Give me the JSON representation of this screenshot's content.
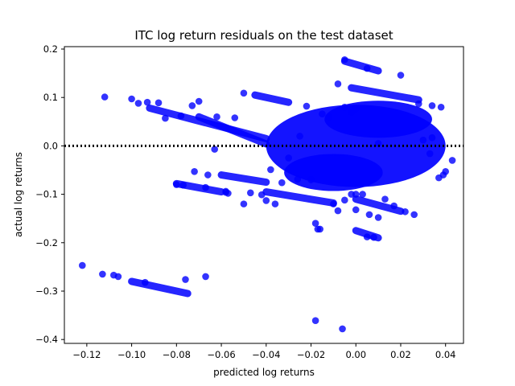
{
  "chart_data": {
    "type": "scatter",
    "title": "ITC log return residuals on the test dataset",
    "xlabel": "predicted log returns",
    "ylabel": "actual log returns",
    "xlim": [
      -0.13,
      0.048
    ],
    "ylim": [
      -0.408,
      0.205
    ],
    "xticks": [
      -0.12,
      -0.1,
      -0.08,
      -0.06,
      -0.04,
      -0.02,
      0.0,
      0.02,
      0.04
    ],
    "yticks": [
      -0.4,
      -0.3,
      -0.2,
      -0.1,
      0.0,
      0.1,
      0.2
    ],
    "xtick_labels": [
      "−0.12",
      "−0.10",
      "−0.08",
      "−0.06",
      "−0.04",
      "−0.02",
      "0.00",
      "0.02",
      "0.04"
    ],
    "ytick_labels": [
      "−0.4",
      "−0.3",
      "−0.2",
      "−0.1",
      "0.0",
      "0.1",
      "0.2"
    ],
    "reference_line": {
      "y": 0.0,
      "style": "dotted",
      "color": "#000000"
    },
    "marker_color": "#0000ff",
    "grid": false,
    "points": [
      [
        -0.122,
        -0.247
      ],
      [
        -0.113,
        -0.265
      ],
      [
        -0.108,
        -0.267
      ],
      [
        -0.106,
        -0.27
      ],
      [
        -0.112,
        0.101
      ],
      [
        -0.1,
        0.097
      ],
      [
        -0.097,
        0.088
      ],
      [
        -0.093,
        0.09
      ],
      [
        -0.088,
        0.089
      ],
      [
        -0.085,
        0.057
      ],
      [
        -0.078,
        0.062
      ],
      [
        -0.073,
        0.083
      ],
      [
        -0.07,
        0.092
      ],
      [
        -0.062,
        0.06
      ],
      [
        -0.054,
        0.058
      ],
      [
        -0.063,
        -0.007
      ],
      [
        -0.05,
        0.109
      ],
      [
        -0.038,
        -0.049
      ],
      [
        -0.018,
        -0.361
      ],
      [
        -0.006,
        -0.378
      ],
      [
        -0.005,
        0.178
      ],
      [
        -0.018,
        -0.16
      ],
      [
        0.013,
        -0.11
      ],
      [
        0.022,
        -0.136
      ],
      [
        0.026,
        -0.142
      ],
      [
        -0.008,
        -0.134
      ],
      [
        -0.01,
        -0.12
      ],
      [
        -0.005,
        -0.112
      ],
      [
        -0.002,
        -0.1
      ],
      [
        0.003,
        -0.1
      ],
      [
        0.017,
        -0.124
      ],
      [
        0.02,
        0.146
      ],
      [
        0.005,
        0.16
      ],
      [
        -0.008,
        0.128
      ],
      [
        -0.005,
        0.08
      ],
      [
        0.028,
        0.087
      ],
      [
        0.034,
        0.083
      ],
      [
        0.038,
        0.08
      ],
      [
        0.043,
        -0.03
      ],
      [
        0.04,
        -0.053
      ],
      [
        0.039,
        -0.06
      ],
      [
        0.037,
        -0.066
      ],
      [
        0.034,
        0.017
      ],
      [
        0.033,
        -0.016
      ],
      [
        0.03,
        0.012
      ],
      [
        0.01,
        0.005
      ],
      [
        -0.025,
        0.02
      ],
      [
        -0.03,
        -0.025
      ],
      [
        -0.022,
        0.082
      ],
      [
        -0.012,
        0.06
      ],
      [
        -0.015,
        0.066
      ],
      [
        -0.002,
        0.07
      ],
      [
        0.0,
        0.077
      ],
      [
        -0.047,
        -0.097
      ],
      [
        -0.072,
        -0.053
      ],
      [
        -0.066,
        -0.06
      ],
      [
        -0.033,
        -0.076
      ],
      [
        -0.026,
        -0.069
      ],
      [
        -0.02,
        -0.07
      ],
      [
        -0.067,
        -0.27
      ],
      [
        -0.076,
        -0.276
      ],
      [
        -0.094,
        -0.282
      ],
      [
        -0.08,
        -0.08
      ],
      [
        -0.077,
        -0.081
      ],
      [
        -0.067,
        -0.086
      ],
      [
        -0.058,
        -0.094
      ],
      [
        -0.058,
        -0.096
      ],
      [
        -0.057,
        -0.098
      ],
      [
        -0.042,
        -0.101
      ],
      [
        -0.04,
        -0.113
      ],
      [
        -0.036,
        -0.12
      ],
      [
        -0.05,
        -0.12
      ],
      [
        0.0,
        -0.132
      ],
      [
        0.006,
        -0.142
      ],
      [
        0.01,
        -0.148
      ],
      [
        -0.016,
        -0.172
      ],
      [
        -0.017,
        -0.172
      ],
      [
        0.005,
        -0.188
      ],
      [
        0.008,
        -0.189
      ],
      [
        0.0,
        -0.1
      ]
    ],
    "dense_clusters": [
      {
        "from": [
          -0.092,
          0.078
        ],
        "to": [
          -0.04,
          0.015
        ],
        "note": "descending streak"
      },
      {
        "from": [
          -0.07,
          0.06
        ],
        "to": [
          -0.04,
          0.004
        ]
      },
      {
        "from": [
          -0.045,
          0.105
        ],
        "to": [
          -0.03,
          0.09
        ]
      },
      {
        "from": [
          -0.06,
          -0.06
        ],
        "to": [
          -0.04,
          -0.075
        ]
      },
      {
        "from": [
          -0.08,
          -0.078
        ],
        "to": [
          -0.06,
          -0.095
        ]
      },
      {
        "from": [
          -0.04,
          -0.095
        ],
        "to": [
          -0.01,
          -0.118
        ]
      },
      {
        "from": [
          -0.1,
          -0.28
        ],
        "to": [
          -0.075,
          -0.305
        ]
      },
      {
        "from": [
          -0.005,
          0.175
        ],
        "to": [
          0.01,
          0.155
        ]
      },
      {
        "from": [
          -0.002,
          0.12
        ],
        "to": [
          0.028,
          0.095
        ]
      },
      {
        "from": [
          0.0,
          -0.11
        ],
        "to": [
          0.02,
          -0.135
        ]
      },
      {
        "from": [
          0.0,
          -0.175
        ],
        "to": [
          0.01,
          -0.19
        ]
      }
    ],
    "dense_core": {
      "x_range": [
        -0.04,
        0.04
      ],
      "y_range": [
        -0.085,
        0.085
      ]
    }
  }
}
